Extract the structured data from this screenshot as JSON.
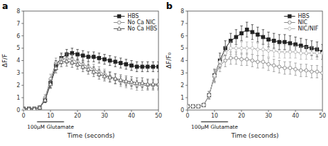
{
  "chart_data": [
    {
      "type": "line",
      "title": "a",
      "x_label": "Time (seconds)",
      "y_label": "ΔF/F",
      "xlim": [
        0,
        50
      ],
      "ylim": [
        0,
        8
      ],
      "xticks": [
        0,
        10,
        20,
        30,
        40,
        50
      ],
      "yticks": [
        0,
        1,
        2,
        3,
        4,
        5,
        6,
        7,
        8
      ],
      "grid": false,
      "legend": "upper right",
      "x": [
        0,
        2,
        4,
        6,
        8,
        10,
        12,
        14,
        16,
        18,
        20,
        22,
        24,
        26,
        28,
        30,
        32,
        34,
        36,
        38,
        40,
        42,
        44,
        46,
        48,
        50
      ],
      "series": [
        {
          "name": "HBS",
          "color": "#222222",
          "marker": "square",
          "values": [
            0.1,
            0.1,
            0.1,
            0.2,
            0.8,
            2.2,
            3.6,
            4.2,
            4.5,
            4.6,
            4.5,
            4.4,
            4.3,
            4.3,
            4.2,
            4.1,
            4.0,
            3.9,
            3.8,
            3.7,
            3.6,
            3.5,
            3.5,
            3.5,
            3.5,
            3.5
          ],
          "errors": [
            0.05,
            0.05,
            0.05,
            0.1,
            0.2,
            0.4,
            0.4,
            0.4,
            0.4,
            0.4,
            0.4,
            0.4,
            0.4,
            0.4,
            0.4,
            0.4,
            0.4,
            0.4,
            0.4,
            0.4,
            0.4,
            0.4,
            0.4,
            0.4,
            0.4,
            0.4
          ]
        },
        {
          "name": "No Ca NIC",
          "color": "#888888",
          "marker": "circle-open",
          "values": [
            0.1,
            0.1,
            0.1,
            0.2,
            1.0,
            2.5,
            3.8,
            4.1,
            4.15,
            4.1,
            3.9,
            3.7,
            3.5,
            3.3,
            3.1,
            2.9,
            2.7,
            2.5,
            2.3,
            2.2,
            2.1,
            2.0,
            2.0,
            2.0,
            2.0,
            2.0
          ],
          "errors": [
            0.05,
            0.05,
            0.05,
            0.1,
            0.25,
            0.4,
            0.4,
            0.4,
            0.4,
            0.4,
            0.4,
            0.4,
            0.4,
            0.4,
            0.4,
            0.4,
            0.4,
            0.4,
            0.4,
            0.4,
            0.4,
            0.4,
            0.4,
            0.4,
            0.4,
            0.4
          ]
        },
        {
          "name": "No Ca HBS",
          "color": "#555555",
          "marker": "triangle-open",
          "values": [
            0.1,
            0.1,
            0.1,
            0.2,
            0.8,
            2.1,
            3.4,
            3.9,
            3.95,
            3.85,
            3.7,
            3.5,
            3.3,
            3.1,
            2.9,
            2.75,
            2.65,
            2.55,
            2.45,
            2.35,
            2.3,
            2.2,
            2.2,
            2.1,
            2.1,
            2.1
          ],
          "errors": [
            0.05,
            0.05,
            0.05,
            0.1,
            0.2,
            0.35,
            0.4,
            0.4,
            0.4,
            0.4,
            0.4,
            0.4,
            0.4,
            0.4,
            0.4,
            0.4,
            0.4,
            0.4,
            0.4,
            0.4,
            0.4,
            0.4,
            0.4,
            0.4,
            0.4,
            0.4
          ]
        }
      ],
      "annotations": [
        {
          "text": "100μM Glutamate",
          "x": [
            5,
            15
          ]
        }
      ]
    },
    {
      "type": "line",
      "title": "b",
      "x_label": "Time (seconds)",
      "y_label": "ΔF/F₀",
      "xlim": [
        0,
        50
      ],
      "ylim": [
        0,
        8
      ],
      "xticks": [
        0,
        10,
        20,
        30,
        40,
        50
      ],
      "yticks": [
        0,
        1,
        2,
        3,
        4,
        5,
        6,
        7,
        8
      ],
      "grid": false,
      "legend": "upper right",
      "x": [
        0,
        2,
        4,
        6,
        8,
        10,
        12,
        14,
        16,
        18,
        20,
        22,
        24,
        26,
        28,
        30,
        32,
        34,
        36,
        38,
        40,
        42,
        44,
        46,
        48,
        50
      ],
      "series": [
        {
          "name": "HBS",
          "color": "#222222",
          "marker": "square",
          "values": [
            0.3,
            0.3,
            0.3,
            0.4,
            1.2,
            2.8,
            4.0,
            5.0,
            5.6,
            5.9,
            6.2,
            6.5,
            6.3,
            6.1,
            5.9,
            5.7,
            5.6,
            5.5,
            5.5,
            5.4,
            5.3,
            5.2,
            5.1,
            5.0,
            4.9,
            4.7
          ],
          "errors": [
            0.1,
            0.1,
            0.1,
            0.15,
            0.3,
            0.5,
            0.6,
            0.6,
            0.6,
            0.6,
            0.6,
            0.6,
            0.6,
            0.6,
            0.6,
            0.6,
            0.6,
            0.6,
            0.6,
            0.6,
            0.6,
            0.6,
            0.6,
            0.6,
            0.6,
            0.6
          ]
        },
        {
          "name": "NIC",
          "color": "#888888",
          "marker": "circle-open",
          "values": [
            0.3,
            0.3,
            0.3,
            0.4,
            1.2,
            2.7,
            3.6,
            4.0,
            4.2,
            4.2,
            4.1,
            4.1,
            4.0,
            3.9,
            3.9,
            3.7,
            3.6,
            3.5,
            3.4,
            3.4,
            3.3,
            3.2,
            3.2,
            3.1,
            3.1,
            3.0
          ],
          "errors": [
            0.1,
            0.1,
            0.1,
            0.15,
            0.3,
            0.5,
            0.5,
            0.5,
            0.5,
            0.5,
            0.5,
            0.5,
            0.5,
            0.5,
            0.5,
            0.5,
            0.5,
            0.5,
            0.5,
            0.5,
            0.5,
            0.5,
            0.5,
            0.5,
            0.5,
            0.5
          ]
        },
        {
          "name": "NIC/NIF",
          "color": "#aaaaaa",
          "marker": "diamond-open",
          "values": [
            0.3,
            0.3,
            0.3,
            0.4,
            1.2,
            2.8,
            3.9,
            4.6,
            5.0,
            5.0,
            5.0,
            5.0,
            5.0,
            4.9,
            4.9,
            4.8,
            4.8,
            4.7,
            4.7,
            4.7,
            4.7,
            4.6,
            4.6,
            4.6,
            4.6,
            4.6
          ],
          "errors": [
            0.1,
            0.1,
            0.1,
            0.15,
            0.3,
            0.5,
            0.5,
            0.5,
            0.5,
            0.5,
            0.5,
            0.5,
            0.5,
            0.5,
            0.5,
            0.5,
            0.5,
            0.5,
            0.5,
            0.5,
            0.5,
            0.5,
            0.5,
            0.5,
            0.5,
            0.5
          ]
        }
      ],
      "annotations": [
        {
          "text": "100μM Glutamate",
          "x": [
            5,
            15
          ]
        }
      ]
    }
  ]
}
